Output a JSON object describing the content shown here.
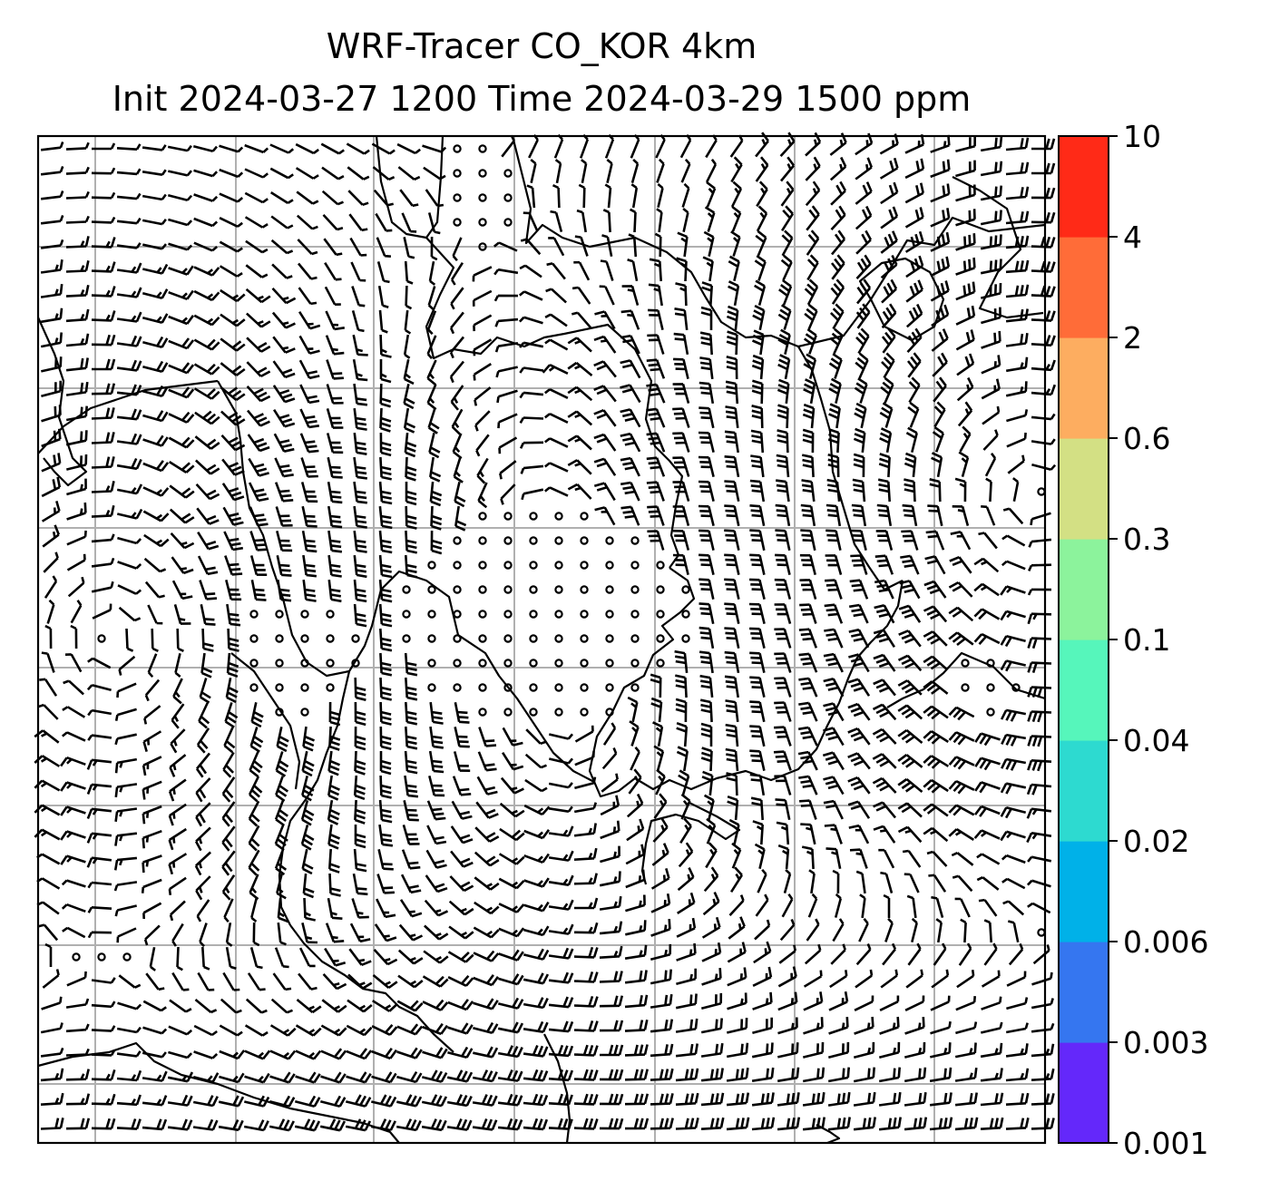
{
  "title_line1": "WRF-Tracer CO_KOR 4km",
  "title_line2": "Init 2024-03-27 1200 Time 2024-03-29 1500 ppm",
  "colorbar": {
    "levels": [
      "0.001",
      "0.003",
      "0.006",
      "0.02",
      "0.04",
      "0.1",
      "0.3",
      "0.6",
      "2",
      "4",
      "10"
    ],
    "colors": [
      "#6428fa",
      "#3576f0",
      "#00b1e8",
      "#2ddad0",
      "#56f6bb",
      "#8cf39c",
      "#d3e084",
      "#fdad60",
      "#ff6c38",
      "#ff2a17"
    ]
  },
  "map": {
    "gridlines": true,
    "wind_field": "barbs",
    "calm_marker": "circle",
    "coastline_color": "#000000",
    "grid_color": "#b0b0b0"
  }
}
